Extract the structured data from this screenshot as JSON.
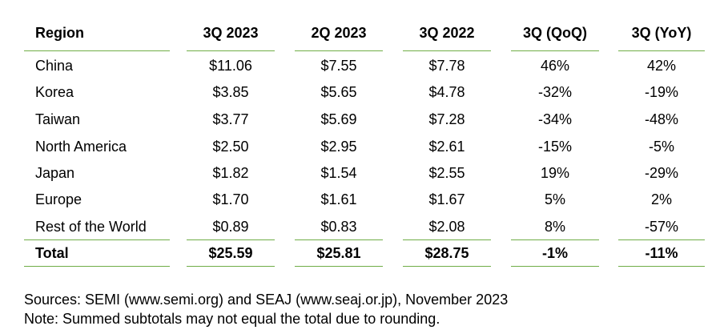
{
  "table": {
    "header": [
      "Region",
      "3Q 2023",
      "2Q 2023",
      "3Q 2022",
      "3Q (QoQ)",
      "3Q (YoY)"
    ],
    "rows": [
      [
        "China",
        "$11.06",
        "$7.55",
        "$7.78",
        "46%",
        "42%"
      ],
      [
        "Korea",
        "$3.85",
        "$5.65",
        "$4.78",
        "-32%",
        "-19%"
      ],
      [
        "Taiwan",
        "$3.77",
        "$5.69",
        "$7.28",
        "-34%",
        "-48%"
      ],
      [
        "North America",
        "$2.50",
        "$2.95",
        "$2.61",
        "-15%",
        "-5%"
      ],
      [
        "Japan",
        "$1.82",
        "$1.54",
        "$2.55",
        "19%",
        "-29%"
      ],
      [
        "Europe",
        "$1.70",
        "$1.61",
        "$1.67",
        "5%",
        "2%"
      ],
      [
        "Rest of the World",
        "$0.89",
        "$0.83",
        "$2.08",
        "8%",
        "-57%"
      ]
    ],
    "total": [
      "Total",
      "$25.59",
      "$25.81",
      "$28.75",
      "-1%",
      "-11%"
    ]
  },
  "notes": [
    "Sources: SEMI (www.semi.org) and SEAJ (www.seaj.or.jp), November 2023",
    "Note: Summed subtotals may not equal the total due to rounding."
  ]
}
